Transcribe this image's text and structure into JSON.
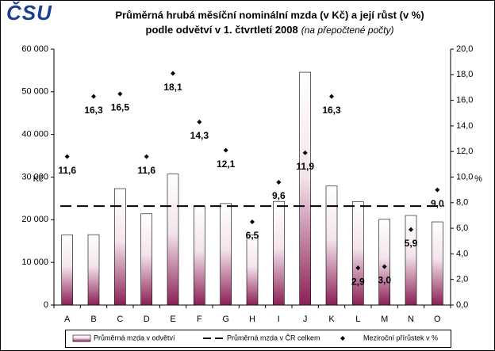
{
  "logo": "ČSU",
  "chart_data": {
    "type": "bar",
    "title": "Průměrná hrubá měsíční nominální mzda (v Kč) a její růst (v %)",
    "subtitle": "podle odvětví v 1. čtvrtletí 2008",
    "subtitle_note": "(na přepočtené počty)",
    "y_label": "Kč",
    "y2_label": "%",
    "categories": [
      "A",
      "B",
      "C",
      "D",
      "E",
      "F",
      "G",
      "H",
      "I",
      "J",
      "K",
      "L",
      "M",
      "N",
      "O"
    ],
    "series": [
      {
        "name": "Průměrná mzda v odvětví",
        "type": "bar",
        "color": "#8c1f55",
        "values": [
          16400,
          16500,
          27300,
          21400,
          30700,
          23200,
          23800,
          16400,
          24300,
          54600,
          27900,
          24200,
          20100,
          21000,
          19500
        ]
      },
      {
        "name": "Meziroční přírůstek v %",
        "type": "scatter",
        "axis": "y2",
        "color": "#000000",
        "values": [
          11.6,
          16.3,
          16.5,
          11.6,
          18.1,
          14.3,
          12.1,
          6.5,
          9.6,
          11.9,
          16.3,
          2.9,
          3.0,
          5.9,
          9.0
        ],
        "value_labels": [
          "11,6",
          "16,3",
          "16,5",
          "11,6",
          "18,1",
          "14,3",
          "12,1",
          "6,5",
          "9,6",
          "11,9",
          "16,3",
          "2,9",
          "3,0",
          "5,9",
          "9,0"
        ]
      }
    ],
    "average": {
      "name": "Průměrná mzda v ČR celkem",
      "value": 23200,
      "color": "#000000"
    },
    "ylim": [
      0,
      60000
    ],
    "yticks": [
      {
        "value": 0,
        "label": "0"
      },
      {
        "value": 10000,
        "label": "10 000"
      },
      {
        "value": 20000,
        "label": "20 000"
      },
      {
        "value": 30000,
        "label": "30 000"
      },
      {
        "value": 40000,
        "label": "40 000"
      },
      {
        "value": 50000,
        "label": "50 000"
      },
      {
        "value": 60000,
        "label": "60 000"
      }
    ],
    "y2lim": [
      0,
      20
    ],
    "y2ticks": [
      {
        "value": 0,
        "label": "0,0"
      },
      {
        "value": 2,
        "label": "2,0"
      },
      {
        "value": 4,
        "label": "4,0"
      },
      {
        "value": 6,
        "label": "6,0"
      },
      {
        "value": 8,
        "label": "8,0"
      },
      {
        "value": 10,
        "label": "10,0"
      },
      {
        "value": 12,
        "label": "12,0"
      },
      {
        "value": 14,
        "label": "14,0"
      },
      {
        "value": 16,
        "label": "16,0"
      },
      {
        "value": 18,
        "label": "18,0"
      },
      {
        "value": 20,
        "label": "20,0"
      }
    ],
    "grid": false
  }
}
